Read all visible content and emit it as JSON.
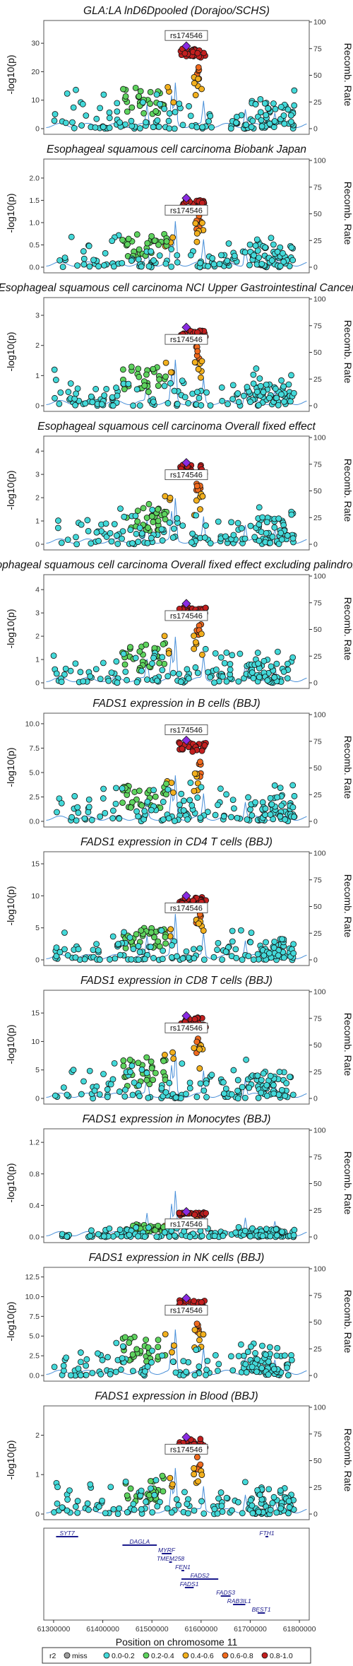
{
  "chart_data": {
    "type": "scatter",
    "x_axis": {
      "label": "Position on chromosome 11",
      "ticks": [
        61300000,
        61400000,
        61500000,
        61600000,
        61700000,
        61800000
      ],
      "range": [
        61280000,
        61820000
      ]
    },
    "lead_snp": "rs174546",
    "y_label": "-log10(p)",
    "y2_label": "Recomb. Rate",
    "y2_ticks": [
      0,
      25,
      50,
      75,
      100
    ],
    "legend": {
      "title": "r2",
      "entries": [
        {
          "label": "miss",
          "color": "#9e9e9e"
        },
        {
          "label": "0.0-0.2",
          "color": "#43d9d9"
        },
        {
          "label": "0.2-0.4",
          "color": "#5ed35e"
        },
        {
          "label": "0.4-0.6",
          "color": "#f2b01e"
        },
        {
          "label": "0.6-0.8",
          "color": "#f06a1e"
        },
        {
          "label": "0.8-1.0",
          "color": "#c21f1f"
        }
      ]
    },
    "panels": [
      {
        "title": "GLA:LA lnD6Dpooled (Dorajoo/SCHS)",
        "ylim": [
          0,
          36
        ],
        "yticks": [
          0,
          10,
          20,
          30
        ],
        "lead_value": 29,
        "label_above": true
      },
      {
        "title": "Esophageal squamous cell carcinoma Biobank Japan",
        "ylim": [
          0,
          2.3
        ],
        "yticks": [
          0,
          0.5,
          1.0,
          1.5,
          2.0
        ],
        "ytick_labels": [
          "0.0",
          "0.5",
          "1.0",
          "1.5",
          "2.0"
        ],
        "lead_value": 1.55,
        "label_above": false
      },
      {
        "title": "Esophageal squamous cell carcinoma NCI Upper Gastrointestinal Cancer",
        "ylim": [
          0,
          3.4
        ],
        "yticks": [
          0,
          1,
          2,
          3
        ],
        "lead_value": 2.6,
        "label_above": false
      },
      {
        "title": "Esophageal squamous cell carcinoma Overall fixed effect",
        "ylim": [
          0,
          4.4
        ],
        "yticks": [
          0,
          1,
          2,
          3,
          4
        ],
        "lead_value": 3.5,
        "label_above": false
      },
      {
        "title": "Esophageal squamous cell carcinoma Overall fixed effect excluding palindromic",
        "ylim": [
          0,
          4.4
        ],
        "yticks": [
          0,
          1,
          2,
          3,
          4
        ],
        "lead_value": 3.4,
        "label_above": false
      },
      {
        "title": "FADS1 expression in B cells (BBJ)",
        "ylim": [
          0,
          10.5
        ],
        "yticks": [
          0,
          2.5,
          5,
          7.5,
          10
        ],
        "ytick_labels": [
          "0.0",
          "2.5",
          "5.0",
          "7.5",
          "10.0"
        ],
        "lead_value": 8.3,
        "label_above": true
      },
      {
        "title": "FADS1 expression in CD4 T cells (BBJ)",
        "ylim": [
          0,
          16
        ],
        "yticks": [
          0,
          5,
          10,
          15
        ],
        "lead_value": 10,
        "label_above": false
      },
      {
        "title": "FADS1 expression in CD8 T cells (BBJ)",
        "ylim": [
          0,
          18
        ],
        "yticks": [
          0,
          5,
          10,
          15
        ],
        "lead_value": 14.5,
        "label_above": false
      },
      {
        "title": "FADS1 expression in Monocytes (BBJ)",
        "ylim": [
          0,
          1.3
        ],
        "yticks": [
          0,
          0.4,
          0.8,
          1.2
        ],
        "ytick_labels": [
          "0.0",
          "0.4",
          "0.8",
          "1.2"
        ],
        "lead_value": 0.32,
        "label_above": false
      },
      {
        "title": "FADS1 expression in NK cells (BBJ)",
        "ylim": [
          0,
          13
        ],
        "yticks": [
          0,
          2.5,
          5,
          7.5,
          10,
          12.5
        ],
        "ytick_labels": [
          "0.0",
          "2.5",
          "5.0",
          "7.5",
          "10.0",
          "12.5"
        ],
        "lead_value": 9.8,
        "label_above": false
      },
      {
        "title": "FADS1 expression in Blood (BBJ)",
        "ylim": [
          0,
          2.6
        ],
        "yticks": [
          0,
          1,
          2
        ],
        "lead_value": 1.95,
        "label_above": false
      }
    ],
    "genes": [
      {
        "name": "SYT7",
        "start": 61305000,
        "end": 61350000,
        "row": 0
      },
      {
        "name": "FTH1",
        "start": 61731000,
        "end": 61735000,
        "row": 0
      },
      {
        "name": "DAGLA",
        "start": 61440000,
        "end": 61510000,
        "row": 1
      },
      {
        "name": "MYRF",
        "start": 61520000,
        "end": 61540000,
        "row": 2
      },
      {
        "name": "TMEM258",
        "start": 61535000,
        "end": 61537000,
        "row": 3
      },
      {
        "name": "FEN1",
        "start": 61560000,
        "end": 61565000,
        "row": 4
      },
      {
        "name": "FADS2",
        "start": 61560000,
        "end": 61635000,
        "row": 5
      },
      {
        "name": "FADS1",
        "start": 61567000,
        "end": 61585000,
        "row": 6
      },
      {
        "name": "FADS3",
        "start": 61640000,
        "end": 61660000,
        "row": 7
      },
      {
        "name": "RAB3IL1",
        "start": 61665000,
        "end": 61690000,
        "row": 8
      },
      {
        "name": "BEST1",
        "start": 61715000,
        "end": 61730000,
        "row": 9
      }
    ]
  }
}
